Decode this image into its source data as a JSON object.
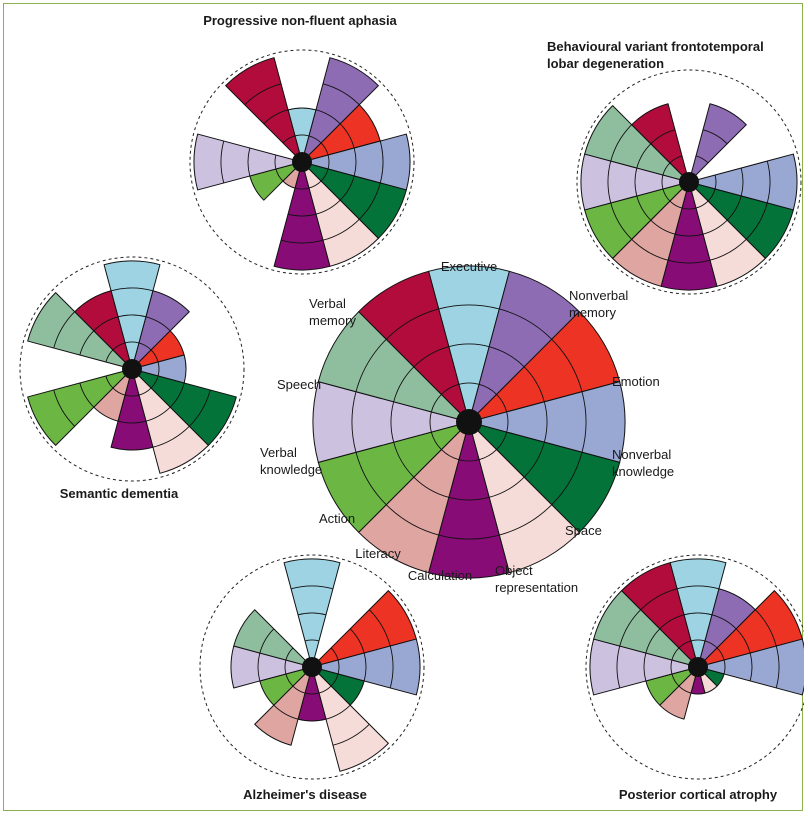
{
  "colors": {
    "Executive": "#9dd3e3",
    "Nonverbal memory": "#8d6cb4",
    "Emotion": "#ec3324",
    "Nonverbal knowledge": "#99a7d3",
    "Space": "#047339",
    "Object representation": "#f6dcd9",
    "Calculation": "#870c76",
    "Literacy": "#dfa5a1",
    "Action": "#6cb743",
    "Verbal knowledge": "#cdc1e0",
    "Speech": "#8fbe9f",
    "Verbal memory": "#b10c3c"
  },
  "labels": {
    "executive": "Executive",
    "nonverbal_memory_1": "Nonverbal",
    "nonverbal_memory_2": "memory",
    "emotion": "Emotion",
    "nonverbal_knowledge_1": "Nonverbal",
    "nonverbal_knowledge_2": "knowledge",
    "space": "Space",
    "object_representation_1": "Object",
    "object_representation_2": "representation",
    "calculation": "Calculation",
    "literacy": "Literacy",
    "action": "Action",
    "verbal_knowledge_1": "Verbal",
    "verbal_knowledge_2": "knowledge",
    "speech": "Speech",
    "verbal_memory_1": "Verbal",
    "verbal_memory_2": "memory"
  },
  "chart_data": {
    "type": "polar-area",
    "max_level": 4,
    "domains": [
      "Executive",
      "Nonverbal memory",
      "Emotion",
      "Nonverbal knowledge",
      "Space",
      "Object representation",
      "Calculation",
      "Literacy",
      "Action",
      "Verbal knowledge",
      "Speech",
      "Verbal memory"
    ],
    "panels": [
      {
        "id": "reference",
        "title": "",
        "levels": [
          4,
          4,
          4,
          4,
          4,
          4,
          4,
          4,
          4,
          4,
          4,
          4
        ]
      },
      {
        "id": "pnfa",
        "title": "Progressive non-fluent aphasia",
        "levels": [
          2,
          4,
          3,
          4,
          4,
          4,
          4,
          1,
          2,
          4,
          0,
          4
        ]
      },
      {
        "id": "bvftld",
        "title_line1": "Behavioural variant frontotemporal",
        "title_line2": "lobar degeneration",
        "levels": [
          0,
          3,
          0,
          4,
          4,
          4,
          4,
          4,
          4,
          4,
          4,
          3
        ]
      },
      {
        "id": "sd",
        "title": "Semantic dementia",
        "levels": [
          4,
          3,
          2,
          2,
          4,
          4,
          3,
          2,
          4,
          0,
          4,
          3
        ]
      },
      {
        "id": "ad",
        "title": "Alzheimer's disease",
        "levels": [
          4,
          0,
          4,
          4,
          2,
          4,
          2,
          3,
          2,
          3,
          3,
          0
        ]
      },
      {
        "id": "pca",
        "title": "Posterior cortical atrophy",
        "levels": [
          4,
          3,
          4,
          4,
          1,
          1,
          1,
          2,
          2,
          4,
          4,
          4
        ]
      }
    ]
  }
}
